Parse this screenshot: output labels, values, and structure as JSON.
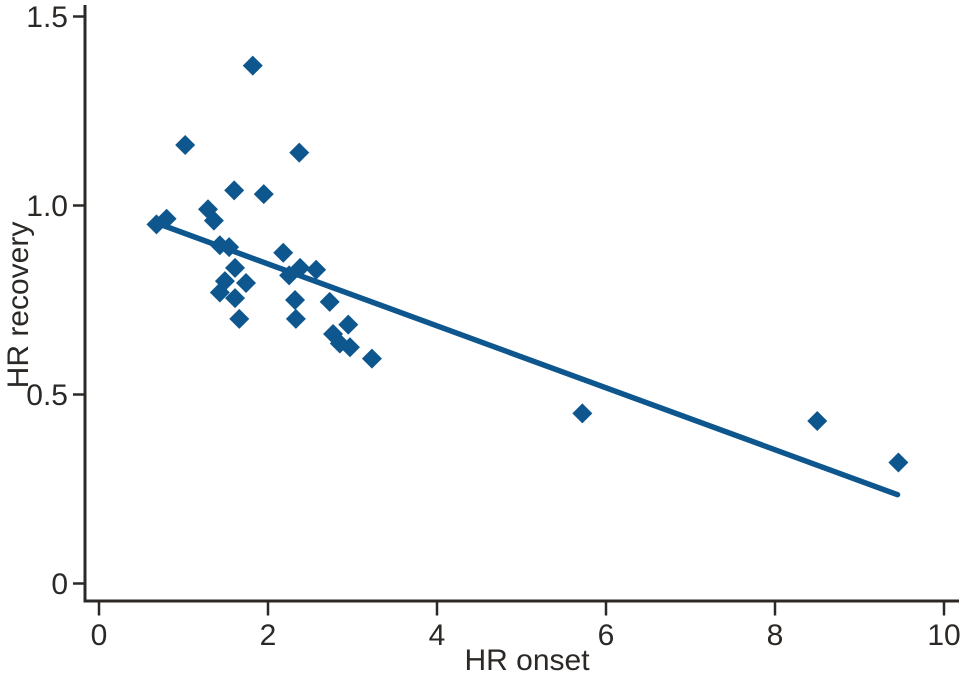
{
  "figure": {
    "background": "#ffffff"
  },
  "chart_data": {
    "type": "scatter",
    "title": "",
    "xlabel": "HR onset",
    "ylabel": "HR recovery",
    "xlim": [
      0,
      10
    ],
    "ylim": [
      0,
      1.5
    ],
    "xticks": [
      0,
      2,
      4,
      6,
      8,
      10
    ],
    "xtick_labels": [
      "0",
      "2",
      "4",
      "6",
      "8",
      "10"
    ],
    "yticks": [
      0,
      0.5,
      1.0,
      1.5
    ],
    "ytick_labels": [
      "0",
      "0.5",
      "1.0",
      "1.5"
    ],
    "grid": false,
    "legend": false,
    "marker": "diamond",
    "marker_color": "#0e568e",
    "line_color": "#0e568e",
    "axis_color": "#2b2826",
    "points": [
      [
        0.68,
        0.95
      ],
      [
        0.8,
        0.965
      ],
      [
        1.02,
        1.16
      ],
      [
        1.29,
        0.99
      ],
      [
        1.36,
        0.96
      ],
      [
        1.43,
        0.895
      ],
      [
        1.54,
        0.89
      ],
      [
        1.43,
        0.77
      ],
      [
        1.49,
        0.8
      ],
      [
        1.61,
        0.835
      ],
      [
        1.61,
        0.755
      ],
      [
        1.66,
        0.7
      ],
      [
        1.6,
        1.04
      ],
      [
        1.74,
        0.795
      ],
      [
        1.82,
        1.37
      ],
      [
        1.95,
        1.03
      ],
      [
        2.18,
        0.875
      ],
      [
        2.25,
        0.815
      ],
      [
        2.32,
        0.75
      ],
      [
        2.33,
        0.7
      ],
      [
        2.37,
        1.14
      ],
      [
        2.38,
        0.835
      ],
      [
        2.57,
        0.83
      ],
      [
        2.73,
        0.745
      ],
      [
        2.77,
        0.66
      ],
      [
        2.85,
        0.635
      ],
      [
        2.95,
        0.685
      ],
      [
        2.97,
        0.625
      ],
      [
        3.23,
        0.595
      ],
      [
        5.72,
        0.45
      ],
      [
        8.5,
        0.43
      ],
      [
        9.46,
        0.32
      ]
    ],
    "trendline": {
      "x1": 0.7,
      "y1": 0.952,
      "x2": 9.45,
      "y2": 0.235
    }
  }
}
